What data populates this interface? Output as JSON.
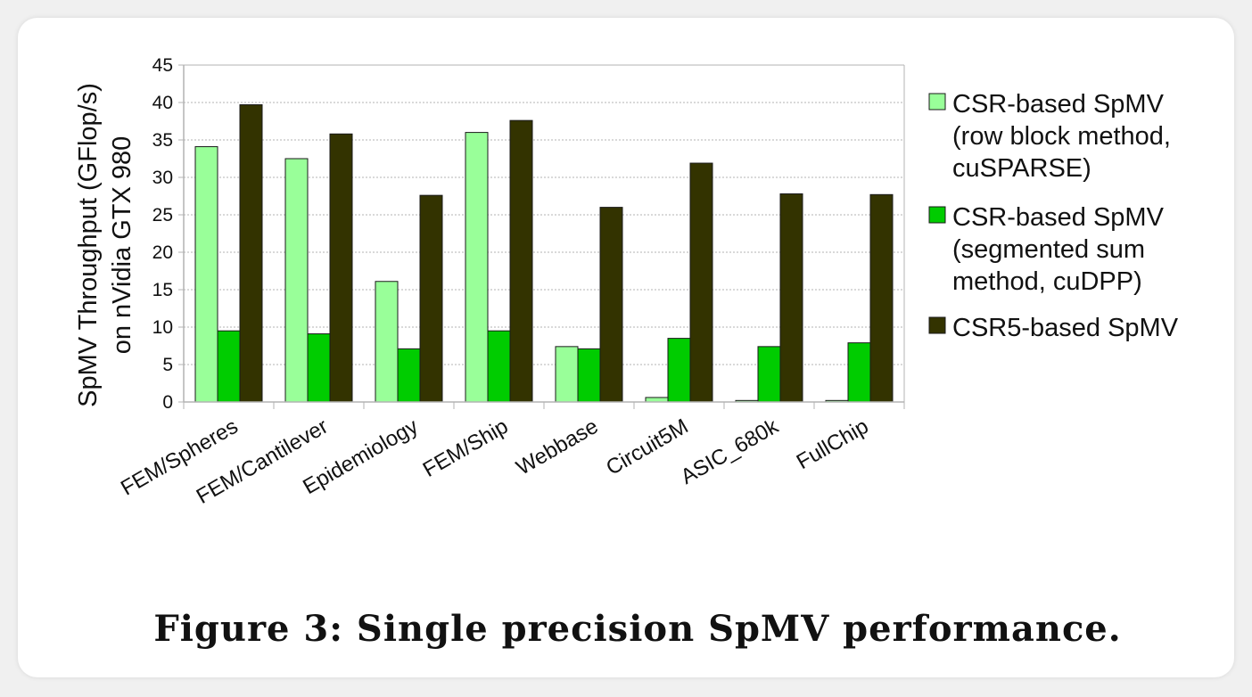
{
  "chart_data": {
    "type": "bar",
    "ylabel_line1": "SpMV Throughput (GFlop/s)",
    "ylabel_line2": "on nVidia GTX 980",
    "xlabel": "",
    "ylim": [
      0,
      45
    ],
    "yticks": [
      "0",
      "5",
      "10",
      "15",
      "20",
      "25",
      "30",
      "35",
      "40",
      "45"
    ],
    "ytick_values": [
      0,
      5,
      10,
      15,
      20,
      25,
      30,
      35,
      40,
      45
    ],
    "grid": "horizontal dotted",
    "legend_position": "right",
    "categories": [
      "FEM/Spheres",
      "FEM/Cantilever",
      "Epidemiology",
      "FEM/Ship",
      "Webbase",
      "Circuit5M",
      "ASIC_680k",
      "FullChip"
    ],
    "series": [
      {
        "name_lines": [
          "CSR-based SpMV",
          "(row block method,",
          "cuSPARSE)"
        ],
        "color": "#99ff99",
        "values": [
          34.1,
          32.5,
          16.1,
          36.0,
          7.4,
          0.6,
          0.2,
          0.2
        ]
      },
      {
        "name_lines": [
          "CSR-based SpMV",
          "(segmented sum",
          "method, cuDPP)"
        ],
        "color": "#00cc00",
        "values": [
          9.5,
          9.1,
          7.1,
          9.5,
          7.1,
          8.5,
          7.4,
          7.9
        ]
      },
      {
        "name_lines": [
          "CSR5-based SpMV"
        ],
        "color": "#333300",
        "values": [
          39.7,
          35.8,
          27.6,
          37.6,
          26.0,
          31.9,
          27.8,
          27.7
        ]
      }
    ]
  },
  "caption": "Figure 3:  Single precision SpMV performance."
}
